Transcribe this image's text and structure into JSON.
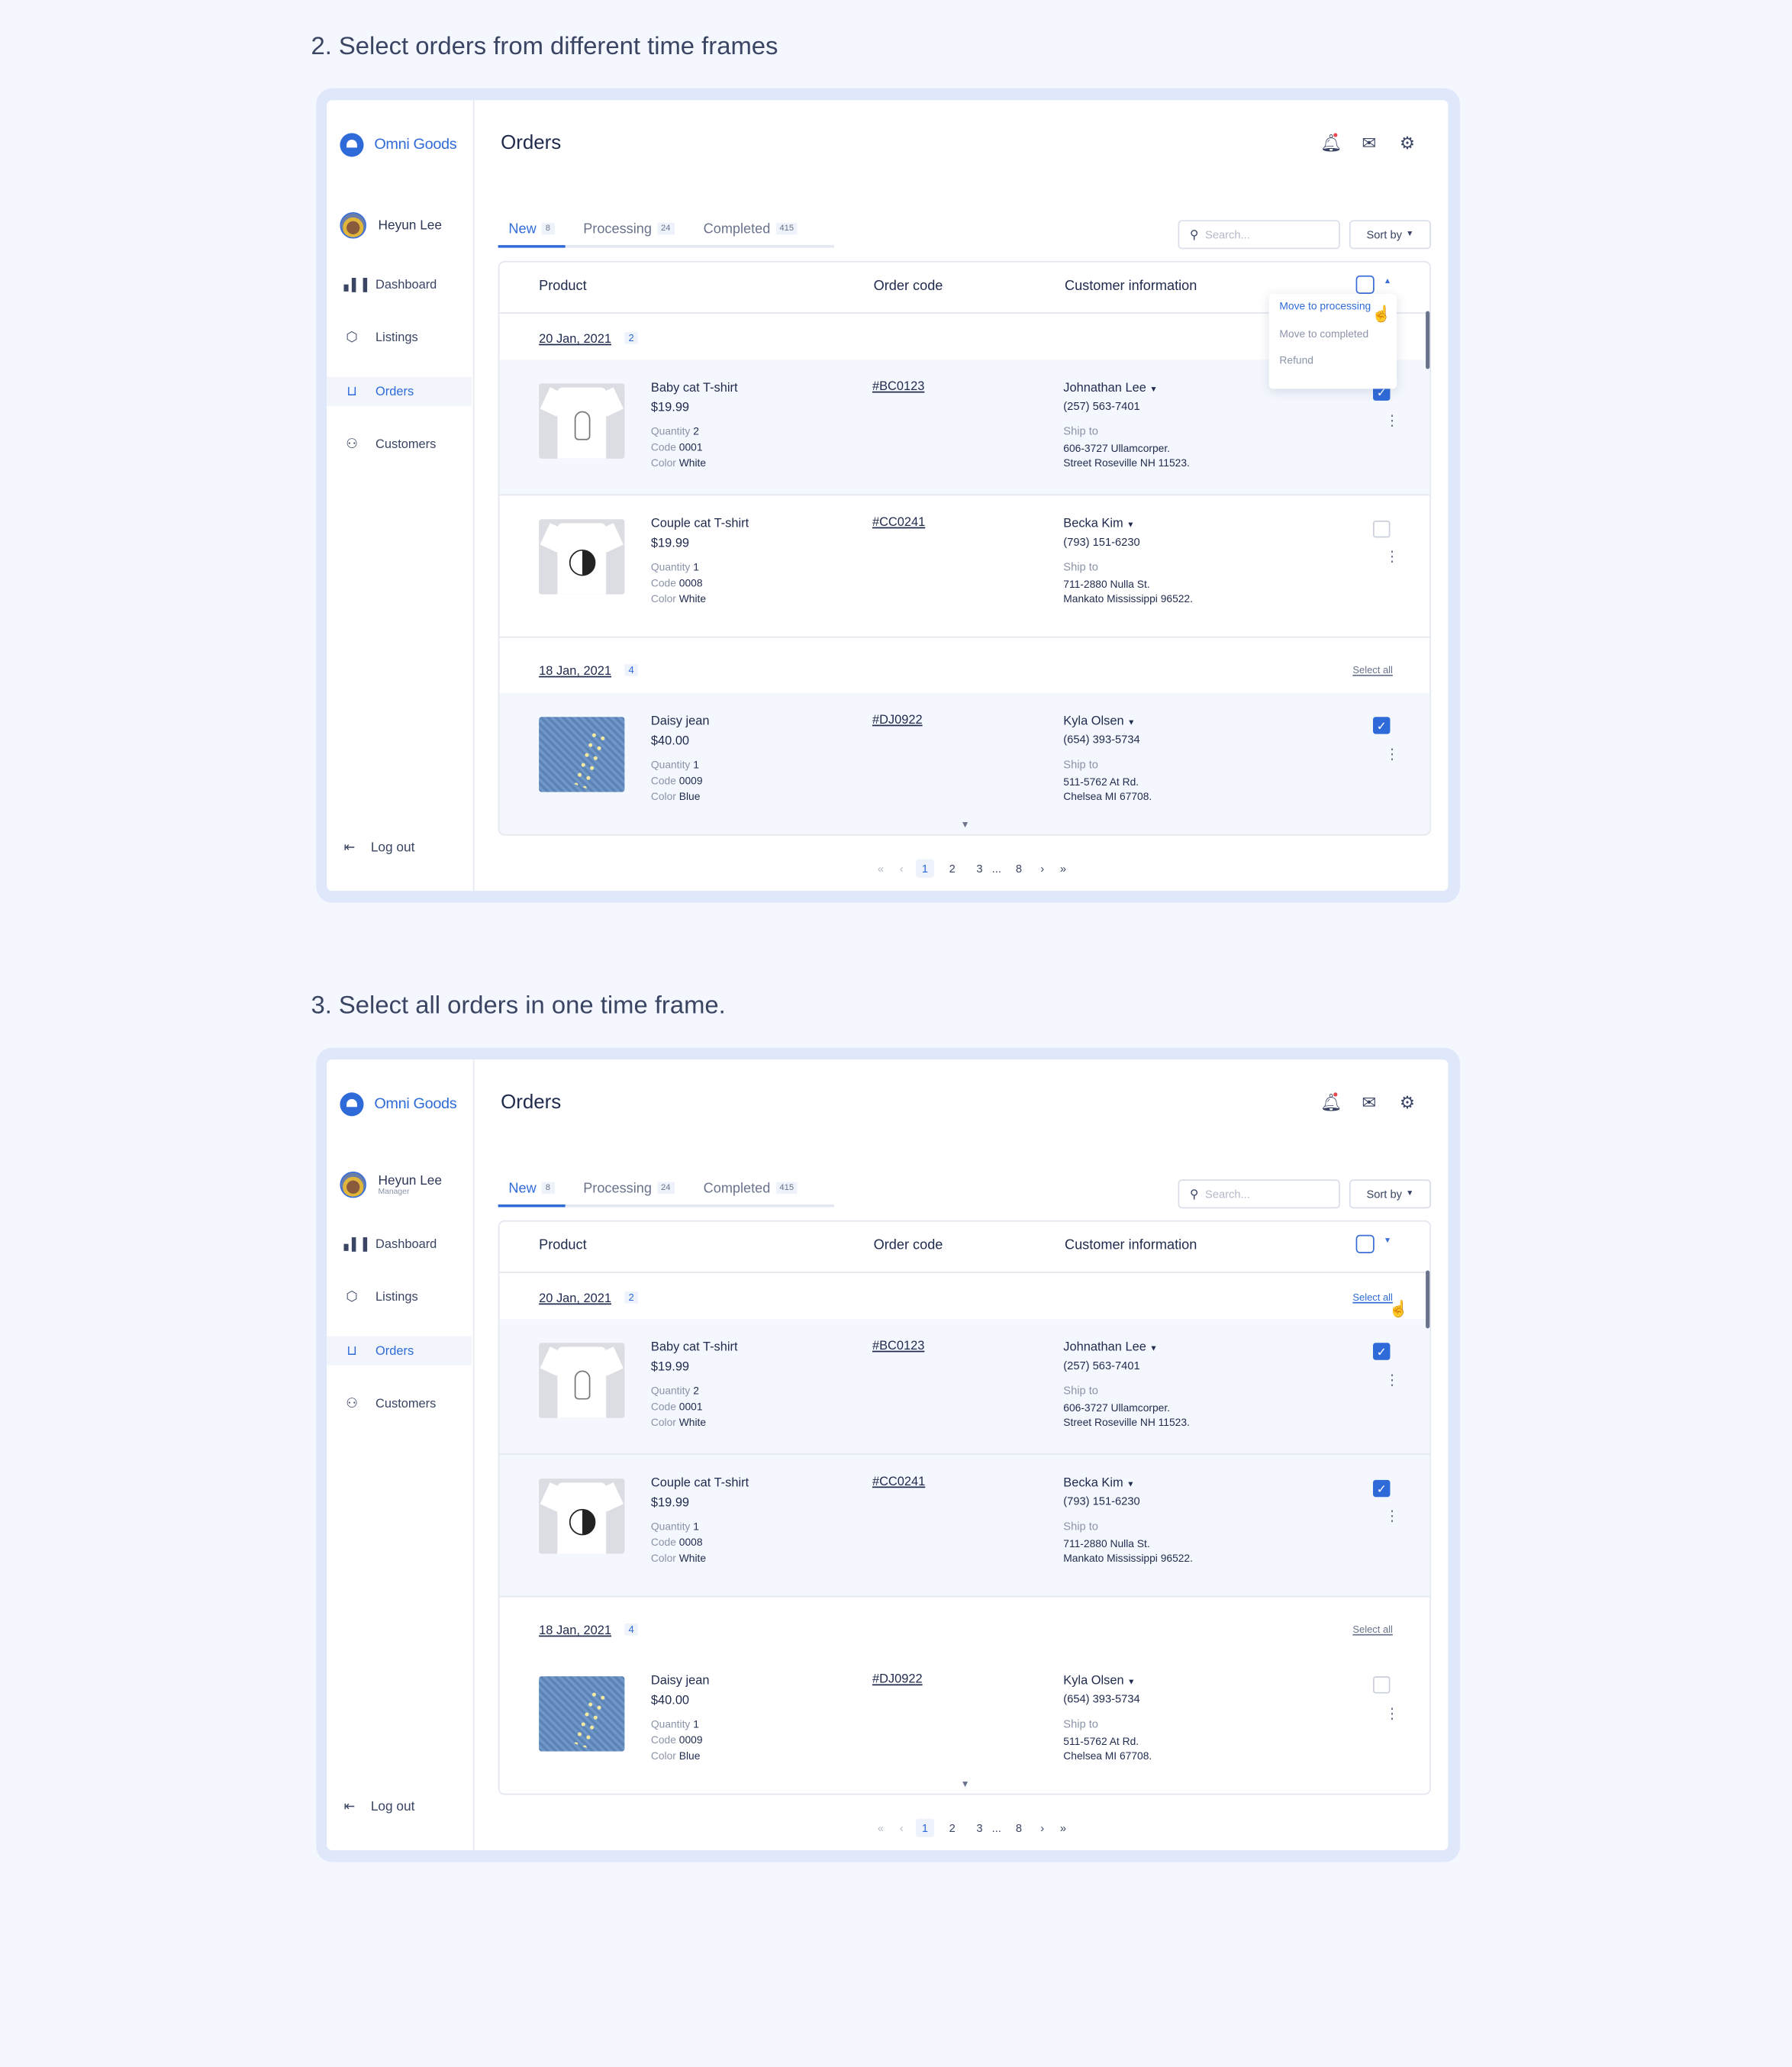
{
  "app": {
    "brand": "Omni Goods",
    "user_name": "Heyun Lee",
    "page_title": "Orders",
    "nav": [
      {
        "label": "Dashboard",
        "icon": "bar-chart-icon",
        "active": false
      },
      {
        "label": "Listings",
        "icon": "box-icon",
        "active": false
      },
      {
        "label": "Orders",
        "icon": "cart-icon",
        "active": true
      },
      {
        "label": "Customers",
        "icon": "users-icon",
        "active": false
      }
    ],
    "logout_label": "Log out",
    "tabs": [
      {
        "label": "New",
        "count": "8",
        "active": true
      },
      {
        "label": "Processing",
        "count": "24",
        "active": false
      },
      {
        "label": "Completed",
        "count": "415",
        "active": false
      }
    ],
    "search_placeholder": "Search...",
    "sort_label": "Sort by",
    "columns": [
      "Product",
      "Order code",
      "Customer information"
    ],
    "labels": {
      "quantity": "Quantity",
      "code": "Code",
      "color": "Color",
      "ship_to": "Ship to"
    },
    "pagination": {
      "pages": [
        "1",
        "2",
        "3",
        "...",
        "8"
      ],
      "current": "1"
    },
    "accent_color": "#2f6bd8"
  },
  "sections": [
    {
      "title": "2. Select orders from different time frames",
      "user_role": "",
      "header_caret": "up",
      "dropdown": {
        "items": [
          "Move to processing",
          "Move to completed",
          "Refund"
        ],
        "highlighted": 0
      },
      "groups": [
        {
          "date": "20 Jan, 2021",
          "count": "2",
          "select_all": "",
          "select_all_hover": false,
          "orders": [
            {
              "name": "Baby cat T-shirt",
              "price": "$19.99",
              "quantity": "2",
              "code": "0001",
              "color": "White",
              "order_code": "#BC0123",
              "customer": "Johnathan Lee",
              "phone": "(257) 563-7401",
              "address": [
                "606-3727 Ullamcorper.",
                "Street Roseville NH 11523."
              ],
              "checked": true,
              "image": "cat-tshirt"
            },
            {
              "name": "Couple cat T-shirt",
              "price": "$19.99",
              "quantity": "1",
              "code": "0008",
              "color": "White",
              "order_code": "#CC0241",
              "customer": "Becka Kim",
              "phone": "(793) 151-6230",
              "address": [
                "711-2880 Nulla St.",
                "Mankato Mississippi 96522."
              ],
              "checked": false,
              "image": "yinyang-tshirt"
            }
          ]
        },
        {
          "date": "18 Jan, 2021",
          "count": "4",
          "select_all": "Select all",
          "select_all_hover": false,
          "orders": [
            {
              "name": "Daisy jean",
              "price": "$40.00",
              "quantity": "1",
              "code": "0009",
              "color": "Blue",
              "order_code": "#DJ0922",
              "customer": "Kyla Olsen",
              "phone": "(654) 393-5734",
              "address": [
                "511-5762 At Rd.",
                "Chelsea MI 67708."
              ],
              "checked": true,
              "image": "jean"
            }
          ]
        }
      ]
    },
    {
      "title": "3. Select all orders in one time frame.",
      "user_role": "Manager",
      "header_caret": "down",
      "dropdown": null,
      "groups": [
        {
          "date": "20 Jan, 2021",
          "count": "2",
          "select_all": "Select all",
          "select_all_hover": true,
          "orders": [
            {
              "name": "Baby cat T-shirt",
              "price": "$19.99",
              "quantity": "2",
              "code": "0001",
              "color": "White",
              "order_code": "#BC0123",
              "customer": "Johnathan Lee",
              "phone": "(257) 563-7401",
              "address": [
                "606-3727 Ullamcorper.",
                "Street Roseville NH 11523."
              ],
              "checked": true,
              "image": "cat-tshirt"
            },
            {
              "name": "Couple cat T-shirt",
              "price": "$19.99",
              "quantity": "1",
              "code": "0008",
              "color": "White",
              "order_code": "#CC0241",
              "customer": "Becka Kim",
              "phone": "(793) 151-6230",
              "address": [
                "711-2880 Nulla St.",
                "Mankato Mississippi 96522."
              ],
              "checked": true,
              "image": "yinyang-tshirt"
            }
          ]
        },
        {
          "date": "18 Jan, 2021",
          "count": "4",
          "select_all": "Select all",
          "select_all_hover": false,
          "orders": [
            {
              "name": "Daisy jean",
              "price": "$40.00",
              "quantity": "1",
              "code": "0009",
              "color": "Blue",
              "order_code": "#DJ0922",
              "customer": "Kyla Olsen",
              "phone": "(654) 393-5734",
              "address": [
                "511-5762 At Rd.",
                "Chelsea MI 67708."
              ],
              "checked": false,
              "image": "jean"
            }
          ]
        }
      ]
    }
  ]
}
